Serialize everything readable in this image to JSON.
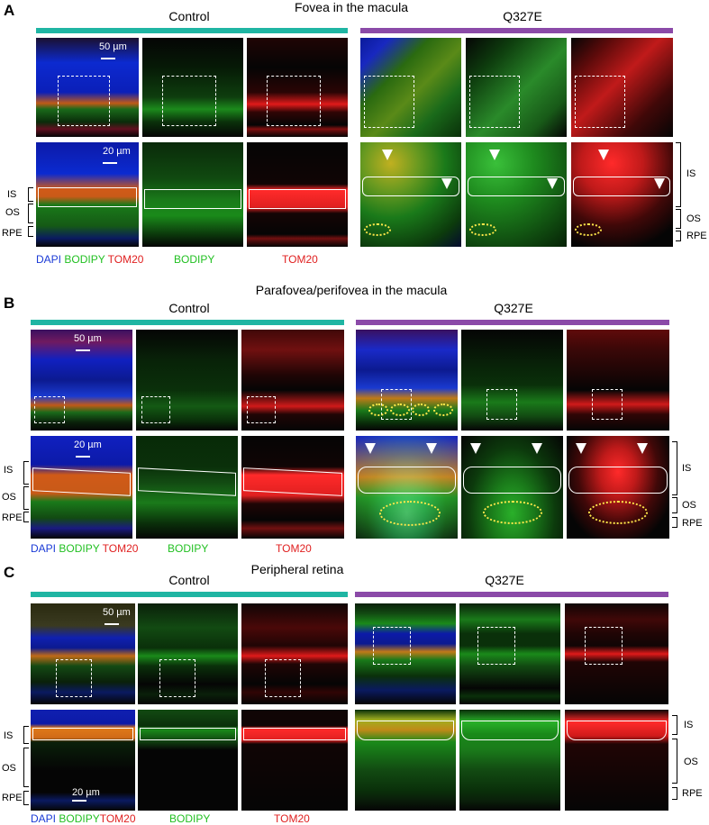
{
  "colors": {
    "control_bar": "#1fb5a3",
    "q327e_bar": "#8b4aa8",
    "dapi": "#1a3ad6",
    "bodipy": "#22c022",
    "tom20": "#e02020"
  },
  "panels": {
    "a": {
      "letter": "A",
      "title": "Fovea in the macula",
      "control": "Control",
      "mutant": "Q327E",
      "scale_top": "50 µm",
      "scale_bottom": "20 µm",
      "labels_left": {
        "is": "IS",
        "os": "OS",
        "rpe": "RPE"
      },
      "labels_right": {
        "is": "IS",
        "os": "OS",
        "rpe": "RPE"
      },
      "legend": {
        "dapi": "DAPI",
        "bodipy1": "BODIPY",
        "tom20_1": "TOM20",
        "bodipy2": "BODIPY",
        "tom20_2": "TOM20"
      }
    },
    "b": {
      "letter": "B",
      "title": "Parafovea/perifovea in the macula",
      "control": "Control",
      "mutant": "Q327E",
      "scale_top": "50 µm",
      "scale_bottom": "20 µm",
      "labels_left": {
        "is": "IS",
        "os": "OS",
        "rpe": "RPE"
      },
      "labels_right": {
        "is": "IS",
        "os": "OS",
        "rpe": "RPE"
      },
      "legend": {
        "dapi": "DAPI",
        "bodipy1": "BODIPY",
        "tom20_1": "TOM20",
        "bodipy2": "BODIPY",
        "tom20_2": "TOM20"
      }
    },
    "c": {
      "letter": "C",
      "title": "Peripheral retina",
      "control": "Control",
      "mutant": "Q327E",
      "scale_top": "50 µm",
      "scale_bottom": "20 µm",
      "labels_left": {
        "is": "IS",
        "os": "OS",
        "rpe": "RPE"
      },
      "labels_right": {
        "is": "IS",
        "os": "OS",
        "rpe": "RPE"
      },
      "legend": {
        "dapi": "DAPI",
        "bodipy1": "BODIPY",
        "tom20_1": "TOM20",
        "bodipy2": "BODIPY",
        "tom20_2": "TOM20"
      }
    }
  }
}
